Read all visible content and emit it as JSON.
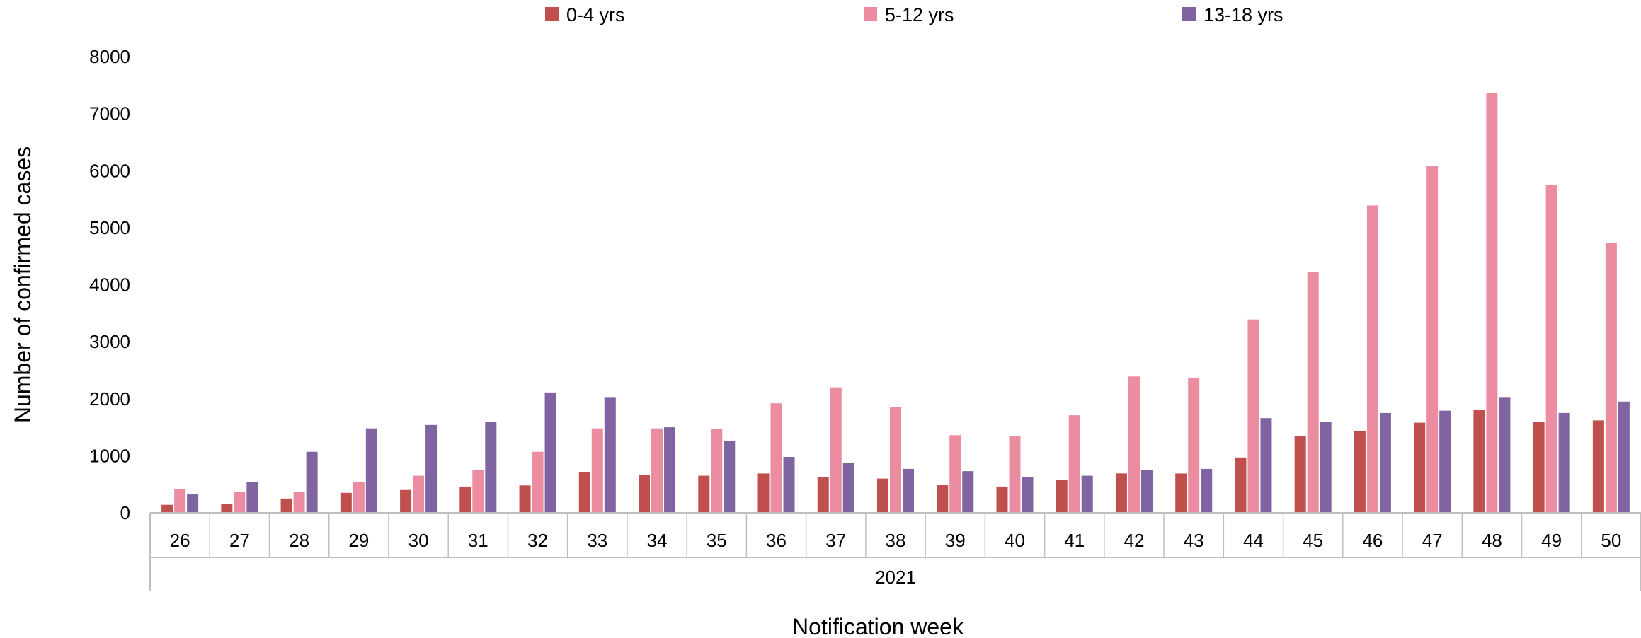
{
  "chart_data": {
    "type": "bar",
    "xlabel": "Notification week",
    "ylabel": "Number of confirmed cases",
    "group_label": "2021",
    "ylim": [
      0,
      8000
    ],
    "yticks": [
      0,
      1000,
      2000,
      3000,
      4000,
      5000,
      6000,
      7000,
      8000
    ],
    "grid": false,
    "legend_position": "top",
    "categories": [
      "26",
      "27",
      "28",
      "29",
      "30",
      "31",
      "32",
      "33",
      "34",
      "35",
      "36",
      "37",
      "38",
      "39",
      "40",
      "41",
      "42",
      "43",
      "44",
      "45",
      "46",
      "47",
      "48",
      "49",
      "50"
    ],
    "series": [
      {
        "name": "0-4 yrs",
        "color": "#c0504d",
        "values": [
          140,
          160,
          250,
          350,
          400,
          460,
          480,
          710,
          670,
          650,
          690,
          630,
          600,
          490,
          460,
          580,
          690,
          690,
          970,
          1350,
          1440,
          1580,
          1810,
          1600,
          1620
        ]
      },
      {
        "name": "5-12 yrs",
        "color": "#ec8ca0",
        "values": [
          410,
          370,
          370,
          540,
          650,
          750,
          1070,
          1480,
          1480,
          1470,
          1920,
          2200,
          1860,
          1360,
          1350,
          1710,
          2390,
          2370,
          3390,
          4220,
          5390,
          6080,
          7360,
          5750,
          4730
        ]
      },
      {
        "name": "13-18 yrs",
        "color": "#8064a2",
        "values": [
          330,
          540,
          1070,
          1480,
          1540,
          1600,
          2110,
          2030,
          1500,
          1260,
          980,
          880,
          770,
          730,
          630,
          650,
          750,
          770,
          1660,
          1600,
          1750,
          1790,
          2030,
          1750,
          1950
        ]
      }
    ]
  }
}
